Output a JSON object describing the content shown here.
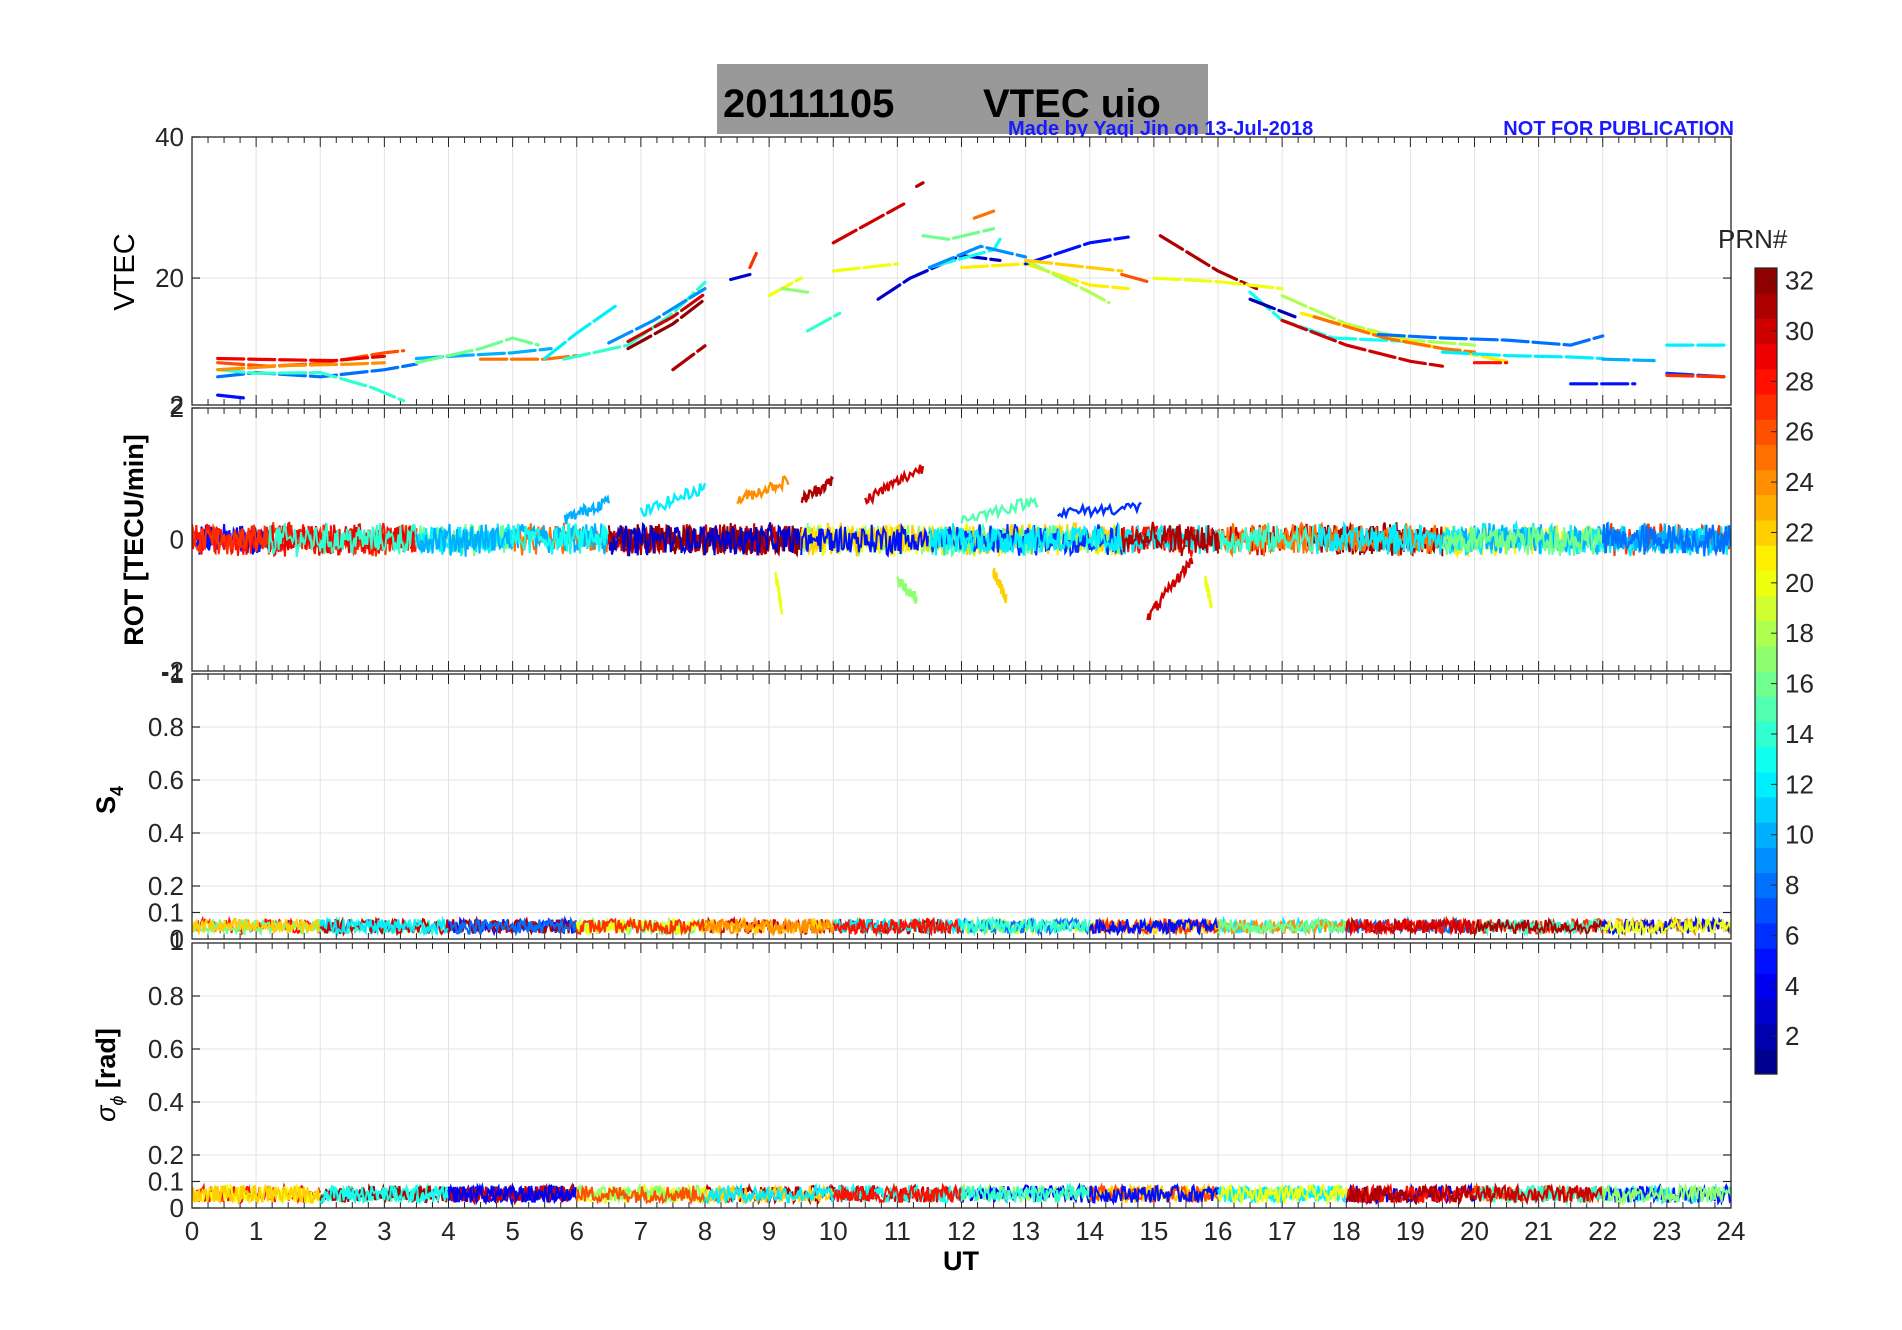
{
  "title": {
    "date": "20111105",
    "text": "VTEC  uio",
    "background": "#999999"
  },
  "annotations": {
    "made_by": "Made by Yaqi Jin on 13-Jul-2018",
    "notice": "NOT FOR PUBLICATION",
    "color": "#1a1aff"
  },
  "colorbar": {
    "title": "PRN#",
    "ticks": [
      "2",
      "4",
      "6",
      "8",
      "10",
      "12",
      "14",
      "16",
      "18",
      "20",
      "22",
      "24",
      "26",
      "28",
      "30",
      "32"
    ],
    "range": [
      1,
      32
    ],
    "colormap": "jet"
  },
  "xaxis": {
    "label": "UT",
    "ticks": [
      "0",
      "1",
      "2",
      "3",
      "4",
      "5",
      "6",
      "7",
      "8",
      "9",
      "10",
      "11",
      "12",
      "13",
      "14",
      "15",
      "16",
      "17",
      "18",
      "19",
      "20",
      "21",
      "22",
      "23",
      "24"
    ],
    "range": [
      0,
      24
    ]
  },
  "panels": [
    {
      "id": "vtec",
      "ylabel": "VTEC",
      "ylim": [
        2,
        40
      ],
      "yticks": [
        {
          "v": 20,
          "t": "20"
        },
        {
          "v": 40,
          "t": "40"
        }
      ],
      "bottom_label": "2",
      "bottom_label2": ""
    },
    {
      "id": "rot",
      "ylabel": "ROT [TECU/min]",
      "ylim": [
        -2,
        2
      ],
      "yticks": [
        {
          "v": 0,
          "t": "0"
        },
        {
          "v": 2,
          "t": "2"
        }
      ],
      "bottom_label": "-2",
      "bottom_label2": "-1"
    },
    {
      "id": "s4",
      "ylabel": "S",
      "ylabel_sub": "4",
      "ylim": [
        0,
        1
      ],
      "yticks": [
        {
          "v": 0.1,
          "t": "0.1"
        },
        {
          "v": 0.2,
          "t": "0.2"
        },
        {
          "v": 0.4,
          "t": "0.4"
        },
        {
          "v": 0.6,
          "t": "0.6"
        },
        {
          "v": 0.8,
          "t": "0.8"
        },
        {
          "v": 1,
          "t": "1"
        }
      ],
      "bottom_label": "0",
      "bottom_label2": "1"
    },
    {
      "id": "sigphi",
      "ylabel": "σ",
      "ylabel_sub": "ϕ",
      "ylabel_tail": " [rad]",
      "ylim": [
        0,
        1
      ],
      "yticks": [
        {
          "v": 0,
          "t": "0"
        },
        {
          "v": 0.1,
          "t": "0.1"
        },
        {
          "v": 0.2,
          "t": "0.2"
        },
        {
          "v": 0.4,
          "t": "0.4"
        },
        {
          "v": 0.6,
          "t": "0.6"
        },
        {
          "v": 0.8,
          "t": "0.8"
        }
      ],
      "bottom_label": "",
      "bottom_label2": ""
    }
  ],
  "chart_data": [
    {
      "type": "line",
      "panel": "vtec",
      "xlabel": "UT",
      "ylabel": "VTEC",
      "xlim": [
        0,
        24
      ],
      "ylim": [
        2,
        40
      ],
      "color_by": "PRN#",
      "series": [
        {
          "prn": 5,
          "x": [
            0.4,
            0.8
          ],
          "y": [
            3.4,
            3.0
          ]
        },
        {
          "prn": 8,
          "x": [
            0.4,
            1.0,
            2.0,
            3.0,
            3.5
          ],
          "y": [
            6.0,
            6.6,
            6.0,
            7.0,
            7.8
          ]
        },
        {
          "prn": 14,
          "x": [
            0.4,
            1.0,
            2.0,
            2.8,
            3.3
          ],
          "y": [
            7.0,
            6.5,
            6.6,
            4.5,
            2.6
          ]
        },
        {
          "prn": 26,
          "x": [
            0.4,
            1.2,
            2.0,
            3.0,
            3.3
          ],
          "y": [
            8.0,
            7.5,
            7.9,
            9.4,
            9.7
          ]
        },
        {
          "prn": 29,
          "x": [
            0.4,
            1.5,
            2.2,
            3.0
          ],
          "y": [
            8.6,
            8.4,
            8.3,
            8.9
          ]
        },
        {
          "prn": 24,
          "x": [
            0.4,
            1.5,
            2.5,
            3.0
          ],
          "y": [
            7.0,
            7.6,
            7.8,
            8.0
          ]
        },
        {
          "prn": 10,
          "x": [
            3.5,
            4.2,
            5.0,
            5.6
          ],
          "y": [
            8.6,
            9.0,
            9.4,
            10.0
          ]
        },
        {
          "prn": 16,
          "x": [
            3.5,
            4.5,
            5.0,
            5.4
          ],
          "y": [
            8.0,
            10.0,
            11.5,
            10.5
          ]
        },
        {
          "prn": 25,
          "x": [
            4.5,
            5.5,
            6.0
          ],
          "y": [
            8.5,
            8.5,
            9.0
          ]
        },
        {
          "prn": 12,
          "x": [
            5.5,
            6.0,
            6.6
          ],
          "y": [
            8.6,
            12.2,
            16.0
          ]
        },
        {
          "prn": 14,
          "x": [
            5.8,
            6.8,
            7.5,
            8.0
          ],
          "y": [
            8.5,
            10.5,
            15.0,
            19.4
          ]
        },
        {
          "prn": 9,
          "x": [
            6.5,
            7.2,
            8.0
          ],
          "y": [
            10.8,
            14.0,
            18.5
          ]
        },
        {
          "prn": 30,
          "x": [
            6.8,
            7.5,
            8.0
          ],
          "y": [
            11.0,
            14.5,
            17.8
          ]
        },
        {
          "prn": 32,
          "x": [
            6.8,
            7.5,
            8.0
          ],
          "y": [
            10.0,
            13.5,
            17.0
          ]
        },
        {
          "prn": 31,
          "x": [
            7.5,
            8.0
          ],
          "y": [
            7.0,
            10.4
          ]
        },
        {
          "prn": 3,
          "x": [
            8.4,
            8.7
          ],
          "y": [
            19.8,
            20.5
          ]
        },
        {
          "prn": 27,
          "x": [
            8.7,
            8.8
          ],
          "y": [
            21.5,
            23.5
          ]
        },
        {
          "prn": 20,
          "x": [
            9.0,
            9.5
          ],
          "y": [
            17.5,
            20.0
          ]
        },
        {
          "prn": 17,
          "x": [
            9.2,
            9.6
          ],
          "y": [
            18.5,
            18.0
          ]
        },
        {
          "prn": 14,
          "x": [
            9.6,
            10.1
          ],
          "y": [
            12.5,
            15.0
          ]
        },
        {
          "prn": 20,
          "x": [
            10.0,
            11.0
          ],
          "y": [
            21.0,
            22.0
          ]
        },
        {
          "prn": 30,
          "x": [
            10.0,
            10.6,
            11.1
          ],
          "y": [
            25.0,
            28.0,
            30.5
          ]
        },
        {
          "prn": 3,
          "x": [
            10.7,
            11.2,
            12.0,
            12.6
          ],
          "y": [
            17.0,
            20.0,
            23.2,
            22.5
          ]
        },
        {
          "prn": 31,
          "x": [
            11.3,
            11.4
          ],
          "y": [
            33.0,
            33.5
          ]
        },
        {
          "prn": 16,
          "x": [
            11.4,
            11.8,
            12.5
          ],
          "y": [
            26.0,
            25.5,
            27.0
          ]
        },
        {
          "prn": 13,
          "x": [
            11.5,
            12.5,
            12.6
          ],
          "y": [
            21.5,
            24.0,
            25.5
          ]
        },
        {
          "prn": 9,
          "x": [
            11.5,
            12.3,
            13.0
          ],
          "y": [
            21.5,
            24.5,
            23.0
          ]
        },
        {
          "prn": 25,
          "x": [
            12.2,
            12.5
          ],
          "y": [
            28.5,
            29.5
          ]
        },
        {
          "prn": 21,
          "x": [
            12.0,
            13.0,
            14.0,
            14.6
          ],
          "y": [
            21.5,
            22.0,
            19.0,
            18.5
          ]
        },
        {
          "prn": 5,
          "x": [
            13.0,
            14.0,
            14.6
          ],
          "y": [
            22.0,
            25.0,
            25.8
          ]
        },
        {
          "prn": 18,
          "x": [
            13.0,
            14.0,
            14.3
          ],
          "y": [
            22.5,
            18.0,
            16.5
          ]
        },
        {
          "prn": 22,
          "x": [
            13.0,
            14.0,
            14.5
          ],
          "y": [
            22.5,
            21.5,
            21.0
          ]
        },
        {
          "prn": 26,
          "x": [
            14.5,
            14.9
          ],
          "y": [
            20.5,
            19.5
          ]
        },
        {
          "prn": 31,
          "x": [
            15.1,
            16.0,
            16.6
          ],
          "y": [
            26.0,
            21.0,
            18.5
          ]
        },
        {
          "prn": 20,
          "x": [
            15.0,
            16.0,
            17.0
          ],
          "y": [
            20.0,
            19.5,
            18.5
          ]
        },
        {
          "prn": 13,
          "x": [
            16.5,
            17.0,
            17.8,
            19.0
          ],
          "y": [
            18.0,
            14.0,
            11.5,
            11.0
          ]
        },
        {
          "prn": 2,
          "x": [
            16.5,
            17.2
          ],
          "y": [
            17.0,
            14.5
          ]
        },
        {
          "prn": 30,
          "x": [
            17.0,
            18.0,
            19.0,
            19.5
          ],
          "y": [
            14.0,
            10.5,
            8.2,
            7.5
          ]
        },
        {
          "prn": 18,
          "x": [
            17.0,
            18.0,
            19.0,
            20.0
          ],
          "y": [
            17.5,
            13.5,
            11.2,
            10.5
          ]
        },
        {
          "prn": 21,
          "x": [
            17.3,
            18.5,
            19.5,
            20.5
          ],
          "y": [
            15.0,
            12.0,
            10.0,
            8.2
          ]
        },
        {
          "prn": 25,
          "x": [
            17.5,
            18.6,
            19.5,
            20.0
          ],
          "y": [
            14.5,
            11.5,
            10.0,
            9.5
          ]
        },
        {
          "prn": 8,
          "x": [
            18.5,
            19.5,
            20.5,
            21.5,
            22.0
          ],
          "y": [
            12.0,
            11.5,
            11.2,
            10.5,
            11.8
          ]
        },
        {
          "prn": 12,
          "x": [
            19.5,
            20.5,
            21.5,
            22.0
          ],
          "y": [
            9.5,
            9.0,
            8.8,
            8.6
          ]
        },
        {
          "prn": 28,
          "x": [
            20.0,
            20.5
          ],
          "y": [
            8.0,
            8.0
          ]
        },
        {
          "prn": 5,
          "x": [
            21.5,
            22.5
          ],
          "y": [
            5.0,
            5.0
          ]
        },
        {
          "prn": 10,
          "x": [
            22.0,
            22.8
          ],
          "y": [
            8.5,
            8.3
          ]
        },
        {
          "prn": 12,
          "x": [
            23.0,
            23.9
          ],
          "y": [
            10.5,
            10.5
          ]
        },
        {
          "prn": 6,
          "x": [
            23.0,
            23.9
          ],
          "y": [
            6.5,
            6.0
          ]
        },
        {
          "prn": 27,
          "x": [
            23.0,
            23.9
          ],
          "y": [
            6.2,
            6.0
          ]
        }
      ]
    },
    {
      "type": "line",
      "panel": "rot",
      "xlabel": "UT",
      "ylabel": "ROT [TECU/min]",
      "xlim": [
        0,
        24
      ],
      "ylim": [
        -2,
        2
      ],
      "color_by": "PRN#",
      "description": "noisy traces scattered around 0 (roughly within ±0.3) for all PRNs, with larger excursions",
      "excursions": [
        {
          "prn": 10,
          "x": [
            5.8,
            6.5
          ],
          "y": [
            0.3,
            0.6
          ]
        },
        {
          "prn": 12,
          "x": [
            7.0,
            8.0
          ],
          "y": [
            0.4,
            0.8
          ]
        },
        {
          "prn": 24,
          "x": [
            8.5,
            9.3
          ],
          "y": [
            0.6,
            0.9
          ]
        },
        {
          "prn": 31,
          "x": [
            9.5,
            10.0
          ],
          "y": [
            0.6,
            0.9
          ]
        },
        {
          "prn": 30,
          "x": [
            10.5,
            11.4
          ],
          "y": [
            0.6,
            1.1
          ]
        },
        {
          "prn": 20,
          "x": [
            9.1,
            9.2
          ],
          "y": [
            -0.5,
            -1.1
          ]
        },
        {
          "prn": 17,
          "x": [
            11.0,
            11.3
          ],
          "y": [
            -0.6,
            -0.9
          ]
        },
        {
          "prn": 22,
          "x": [
            12.5,
            12.7
          ],
          "y": [
            -0.5,
            -0.9
          ]
        },
        {
          "prn": 30,
          "x": [
            14.9,
            15.6
          ],
          "y": [
            -1.2,
            -0.3
          ]
        },
        {
          "prn": 20,
          "x": [
            15.8,
            15.9
          ],
          "y": [
            -0.6,
            -1.0
          ]
        },
        {
          "prn": 15,
          "x": [
            12.0,
            13.2
          ],
          "y": [
            0.3,
            0.6
          ]
        },
        {
          "prn": 6,
          "x": [
            13.5,
            14.8
          ],
          "y": [
            0.4,
            0.5
          ]
        }
      ]
    },
    {
      "type": "line",
      "panel": "s4",
      "xlabel": "UT",
      "ylabel": "S4",
      "xlim": [
        0,
        24
      ],
      "ylim": [
        0,
        1
      ],
      "color_by": "PRN#",
      "description": "all PRNs show low S4 values between about 0.02 and 0.08 throughout the day"
    },
    {
      "type": "line",
      "panel": "sigphi",
      "xlabel": "UT",
      "ylabel": "σϕ [rad]",
      "xlim": [
        0,
        24
      ],
      "ylim": [
        0,
        1
      ],
      "color_by": "PRN#",
      "description": "all PRNs show low phase scintillation between about 0.02 and 0.09 rad throughout the day"
    }
  ]
}
